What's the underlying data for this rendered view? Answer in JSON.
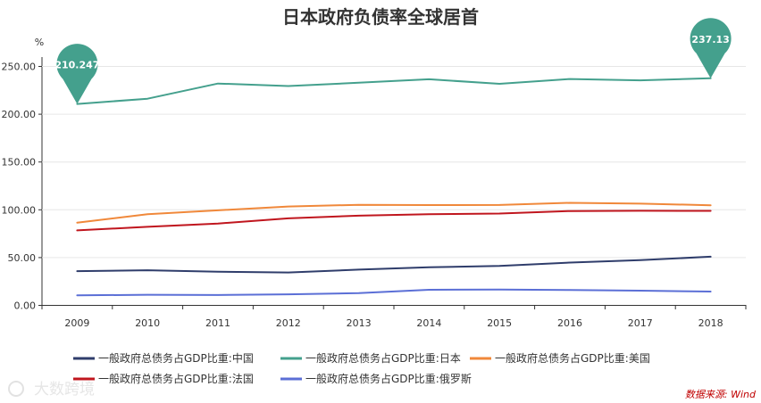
{
  "chart_data": {
    "type": "line",
    "title": "日本政府负债率全球居首",
    "ylabel": "%",
    "xlabel": "",
    "ylim": [
      0,
      250
    ],
    "y_ticks": [
      "0.00",
      "50.00",
      "100.00",
      "150.00",
      "200.00",
      "250.00"
    ],
    "categories": [
      "2009",
      "2010",
      "2011",
      "2012",
      "2013",
      "2014",
      "2015",
      "2016",
      "2017",
      "2018"
    ],
    "series": [
      {
        "name": "一般政府总债务占GDP比重:中国",
        "color": "#2f3d6b",
        "values": [
          35.4,
          36.3,
          34.7,
          34.0,
          36.9,
          39.5,
          40.8,
          44.3,
          46.8,
          50.5
        ]
      },
      {
        "name": "一般政府总债务占GDP比重:日本",
        "color": "#44a08d",
        "values": [
          210.247,
          215.8,
          231.6,
          229.0,
          232.5,
          236.1,
          231.3,
          236.4,
          235.0,
          237.13
        ]
      },
      {
        "name": "一般政府总债务占GDP比重:美国",
        "color": "#f0883a",
        "values": [
          86.0,
          95.0,
          99.0,
          103.0,
          104.8,
          104.5,
          104.6,
          106.8,
          106.0,
          104.3
        ]
      },
      {
        "name": "一般政府总债务占GDP比重:法国",
        "color": "#c0161e",
        "values": [
          78.0,
          81.7,
          85.2,
          90.6,
          93.4,
          94.9,
          95.6,
          98.2,
          98.5,
          98.4
        ]
      },
      {
        "name": "一般政府总债务占GDP比重:俄罗斯",
        "color": "#5b6fd6",
        "values": [
          10.0,
          10.6,
          10.4,
          11.1,
          12.3,
          15.9,
          16.1,
          15.6,
          14.9,
          14.0
        ]
      }
    ],
    "annotations": [
      {
        "label": "210.247",
        "series": 1,
        "index": 0
      },
      {
        "label": "237.13",
        "series": 1,
        "index": 9
      }
    ]
  },
  "source": "数据来源: Wind",
  "watermark": "大数跨境"
}
